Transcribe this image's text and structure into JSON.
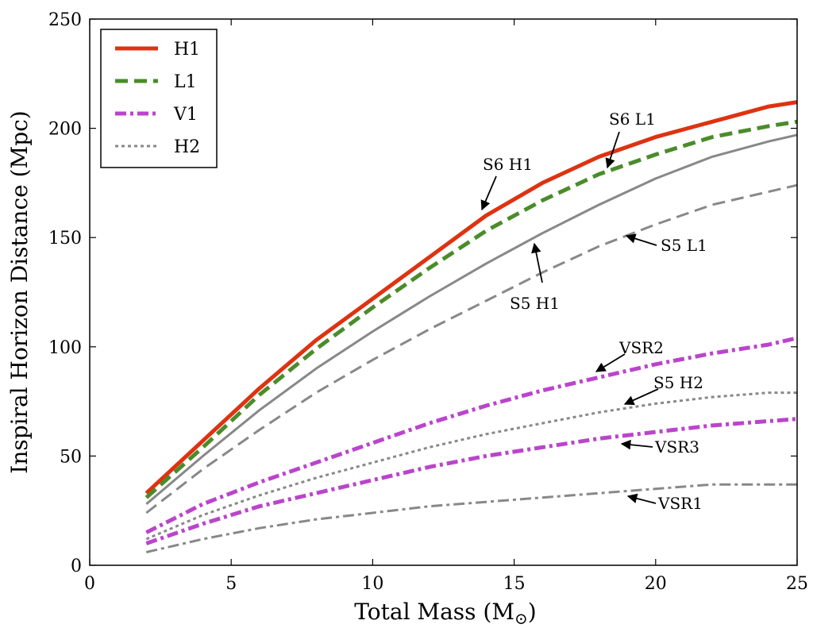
{
  "chart_data": {
    "type": "line",
    "title": "",
    "xlabel": "Total Mass (M",
    "xlabel_sub": "⊙",
    "xlabel_close": ")",
    "ylabel": "Inspiral Horizon Distance (Mpc)",
    "xlim": [
      0,
      25
    ],
    "ylim": [
      0,
      250
    ],
    "x_ticks": [
      0,
      5,
      10,
      15,
      20,
      25
    ],
    "y_ticks": [
      0,
      50,
      100,
      150,
      200,
      250
    ],
    "grid": false,
    "legend_position": "top-left",
    "legend": [
      {
        "name": "H1",
        "color": "#dd3311",
        "style": "solid"
      },
      {
        "name": "L1",
        "color": "#4a8c2a",
        "style": "dashed"
      },
      {
        "name": "V1",
        "color": "#bb44cc",
        "style": "dashdot"
      },
      {
        "name": "H2",
        "color": "#888888",
        "style": "dotted"
      }
    ],
    "series": [
      {
        "label": "S6 H1",
        "color": "#dd3311",
        "style": "solid",
        "width": 5,
        "x": [
          2,
          4,
          6,
          8,
          10,
          12,
          14,
          16,
          18,
          20,
          22,
          24,
          25
        ],
        "y": [
          33,
          57,
          81,
          103,
          122,
          141,
          160,
          175,
          187,
          196,
          203,
          210,
          212
        ]
      },
      {
        "label": "S6 L1",
        "color": "#4a8c2a",
        "style": "dashed",
        "width": 5,
        "x": [
          2,
          4,
          6,
          8,
          10,
          12,
          14,
          16,
          18,
          20,
          22,
          24,
          25
        ],
        "y": [
          31,
          54,
          78,
          99,
          118,
          136,
          153,
          167,
          179,
          188,
          196,
          201,
          203
        ]
      },
      {
        "label": "S5 H1",
        "color": "#888888",
        "style": "solid",
        "width": 3,
        "x": [
          2,
          4,
          6,
          8,
          10,
          12,
          14,
          16,
          18,
          20,
          22,
          24,
          25
        ],
        "y": [
          28,
          50,
          71,
          90,
          107,
          123,
          138,
          152,
          165,
          177,
          187,
          194,
          197
        ]
      },
      {
        "label": "S5 L1",
        "color": "#888888",
        "style": "dashed",
        "width": 3,
        "x": [
          2,
          4,
          6,
          8,
          10,
          12,
          14,
          16,
          18,
          20,
          22,
          24,
          25
        ],
        "y": [
          24,
          44,
          62,
          79,
          94,
          108,
          121,
          134,
          146,
          156,
          165,
          171,
          174
        ]
      },
      {
        "label": "VSR2",
        "color": "#bb44cc",
        "style": "dashdot",
        "width": 5,
        "x": [
          2,
          4,
          6,
          8,
          10,
          12,
          14,
          16,
          18,
          20,
          22,
          24,
          25
        ],
        "y": [
          15,
          28,
          38,
          47,
          56,
          65,
          73,
          80,
          86,
          92,
          97,
          101,
          104
        ]
      },
      {
        "label": "S5 H2",
        "color": "#888888",
        "style": "dotted",
        "width": 3,
        "x": [
          2,
          4,
          6,
          8,
          10,
          12,
          14,
          16,
          18,
          20,
          22,
          24,
          25
        ],
        "y": [
          12,
          23,
          32,
          40,
          47,
          54,
          60,
          65,
          70,
          74,
          77,
          79,
          79
        ]
      },
      {
        "label": "VSR3",
        "color": "#bb44cc",
        "style": "dashdot",
        "width": 5,
        "x": [
          2,
          4,
          6,
          8,
          10,
          12,
          14,
          16,
          18,
          20,
          22,
          24,
          25
        ],
        "y": [
          10,
          19,
          27,
          33,
          39,
          45,
          50,
          54,
          58,
          61,
          64,
          66,
          67
        ]
      },
      {
        "label": "VSR1",
        "color": "#888888",
        "style": "dashdot",
        "width": 3,
        "x": [
          2,
          4,
          6,
          8,
          10,
          12,
          14,
          16,
          18,
          20,
          22,
          24,
          25
        ],
        "y": [
          6,
          12,
          17,
          21,
          24,
          27,
          29,
          31,
          33,
          35,
          37,
          37,
          37
        ]
      }
    ],
    "annotations": [
      {
        "text": "S6 H1",
        "target": [
          14,
          160
        ]
      },
      {
        "text": "S6 L1",
        "target": [
          18.3,
          179
        ]
      },
      {
        "text": "S5 H1",
        "target": [
          15.7,
          146
        ]
      },
      {
        "text": "S5 L1",
        "target": [
          18.7,
          149
        ]
      },
      {
        "text": "VSR2",
        "target": [
          17.8,
          88
        ]
      },
      {
        "text": "S5 H2",
        "target": [
          18.9,
          72
        ]
      },
      {
        "text": "VSR3",
        "target": [
          18.7,
          56
        ]
      },
      {
        "text": "VSR1",
        "target": [
          19.0,
          33
        ]
      }
    ]
  }
}
